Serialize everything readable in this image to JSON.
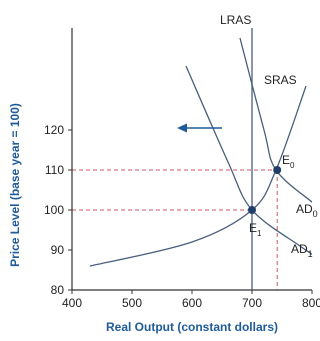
{
  "chart_data": {
    "type": "line",
    "title": "",
    "xlabel": "Real Output (constant dollars)",
    "ylabel": "Price Level (base year = 100)",
    "xlim": [
      400,
      800
    ],
    "ylim": [
      80,
      130
    ],
    "xticks": [
      400,
      500,
      600,
      700,
      800
    ],
    "yticks": [
      80,
      90,
      100,
      110,
      120
    ],
    "colors": {
      "axis_title": "#1f5b9a",
      "curve": "#4a5f7e",
      "guide": "#d0565c",
      "arrow": "#1f5b9a",
      "point": "#1f3f6a"
    },
    "series": [
      {
        "name": "LRAS",
        "type": "vertical",
        "x": 700
      },
      {
        "name": "SRAS",
        "x": [
          430,
          600,
          700,
          740,
          790
        ],
        "y": [
          86,
          92,
          100,
          110,
          131
        ]
      },
      {
        "name": "AD0",
        "x": [
          680,
          720,
          740,
          800,
          820
        ],
        "y": [
          143,
          120,
          110,
          102,
          100
        ]
      },
      {
        "name": "AD1",
        "x": [
          590,
          660,
          700,
          780,
          810
        ],
        "y": [
          136,
          112,
          100,
          91,
          88
        ]
      }
    ],
    "points": [
      {
        "name": "E0",
        "x": 742,
        "y": 110
      },
      {
        "name": "E1",
        "x": 700,
        "y": 100
      }
    ],
    "labels": {
      "lras": "LRAS",
      "sras": "SRAS",
      "ad0": "AD",
      "ad0_sub": "0",
      "ad1": "AD",
      "ad1_sub": "1",
      "e0": "E",
      "e0_sub": "0",
      "e1": "E",
      "e1_sub": "1"
    }
  }
}
